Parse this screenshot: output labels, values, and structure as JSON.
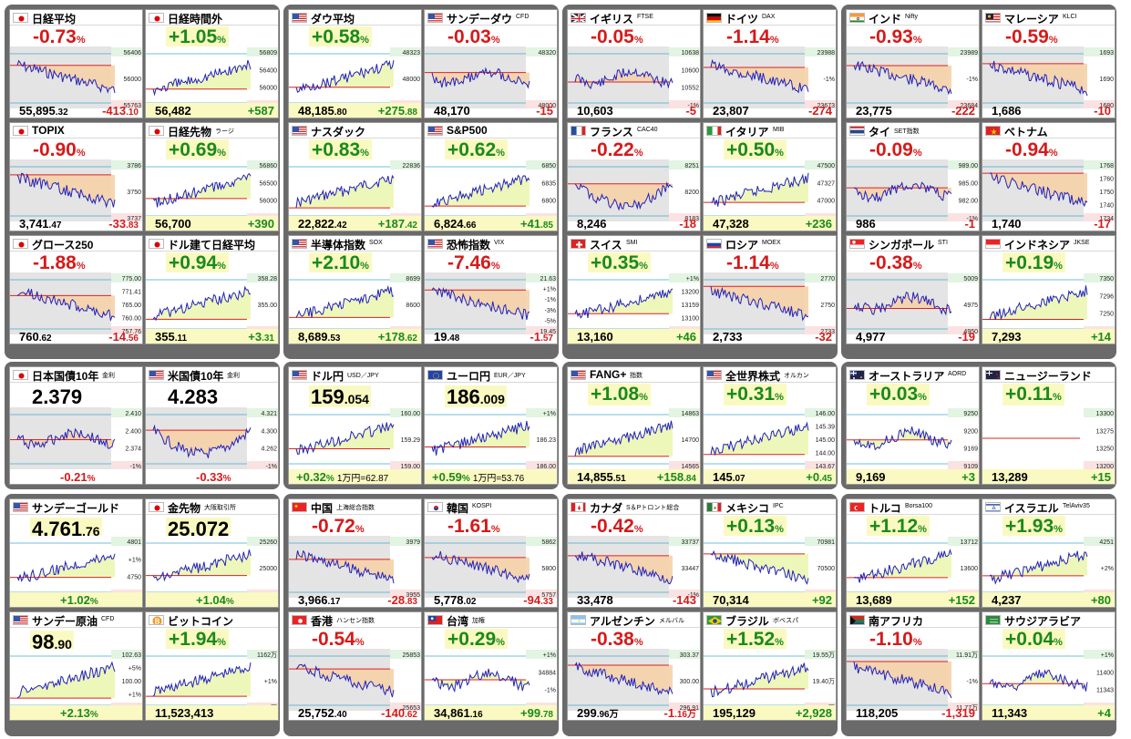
{
  "colors": {
    "up": "#1a8a1a",
    "down": "#d61a1a",
    "line": "#2222bb",
    "fill_up": "#ecf6b2",
    "fill_down": "#f5d2a8",
    "panel_bg": "#6a6a6a",
    "gray_fill": "#cfcfcf"
  },
  "cards": [
    {
      "name": "日経平均",
      "sub": "",
      "flag": "jp",
      "pct": "-0.73",
      "pct_unit": "%",
      "dir": "down",
      "price": "55,895",
      "price_dec": ".32",
      "change": "-413",
      "change_dec": ".10",
      "axis": [
        "56406",
        "56000",
        "55763"
      ],
      "trend": "down"
    },
    {
      "name": "日経時間外",
      "sub": "",
      "flag": "jp",
      "pct": "+1.05",
      "pct_unit": "%",
      "dir": "up",
      "price": "56,482",
      "price_dec": "",
      "change": "+587",
      "change_dec": "",
      "axis": [
        "56809",
        "56400",
        "56000",
        "55600"
      ],
      "trend": "up"
    },
    {
      "name": "ダウ平均",
      "sub": "",
      "flag": "us",
      "pct": "+0.58",
      "pct_unit": "%",
      "dir": "up",
      "price": "48,185",
      "price_dec": ".80",
      "change": "+275",
      "change_dec": ".88",
      "axis": [
        "48323",
        "48000",
        "47705"
      ],
      "trend": "up"
    },
    {
      "name": "サンデーダウ",
      "sub": "CFD",
      "flag": "us",
      "pct": "-0.03",
      "pct_unit": "%",
      "dir": "down",
      "price": "48,170",
      "price_dec": "",
      "change": "-15",
      "change_dec": "",
      "axis": [
        "48320",
        "48000"
      ],
      "trend": "flat"
    },
    {
      "name": "イギリス",
      "sub": "FTSE",
      "flag": "gb",
      "pct": "-0.05",
      "pct_unit": "%",
      "dir": "down",
      "price": "10,603",
      "price_dec": "",
      "change": "-5",
      "change_dec": "",
      "axis": [
        "10638",
        "10600",
        "10552",
        "-1%"
      ],
      "trend": "flat"
    },
    {
      "name": "ドイツ",
      "sub": "DAX",
      "flag": "de",
      "pct": "-1.14",
      "pct_unit": "%",
      "dir": "down",
      "price": "23,807",
      "price_dec": "",
      "change": "-274",
      "change_dec": "",
      "axis": [
        "23988",
        "-1%",
        "23673"
      ],
      "trend": "down"
    },
    {
      "name": "インド",
      "sub": "Nifty",
      "flag": "in",
      "pct": "-0.93",
      "pct_unit": "%",
      "dir": "down",
      "price": "23,775",
      "price_dec": "",
      "change": "-222",
      "change_dec": "",
      "axis": [
        "23989",
        "-1%",
        "23684"
      ],
      "trend": "down"
    },
    {
      "name": "マレーシア",
      "sub": "KLCI",
      "flag": "my",
      "pct": "-0.59",
      "pct_unit": "%",
      "dir": "down",
      "price": "1,686",
      "price_dec": "",
      "change": "-10",
      "change_dec": "",
      "axis": [
        "1693",
        "1690",
        "1680"
      ],
      "trend": "down"
    },
    {
      "name": "TOPIX",
      "sub": "",
      "flag": "jp",
      "pct": "-0.90",
      "pct_unit": "%",
      "dir": "down",
      "price": "3,741",
      "price_dec": ".47",
      "change": "-33",
      "change_dec": ".83",
      "axis": [
        "3786",
        "3750",
        "3737"
      ],
      "trend": "down"
    },
    {
      "name": "日経先物",
      "sub": "ラージ",
      "flag": "jp",
      "pct": "+0.69",
      "pct_unit": "%",
      "dir": "up",
      "price": "56,700",
      "price_dec": "",
      "change": "+390",
      "change_dec": "",
      "axis": [
        "56860",
        "56500",
        "56000",
        "55760"
      ],
      "trend": "up"
    },
    {
      "name": "ナスダック",
      "sub": "",
      "flag": "us",
      "pct": "+0.83",
      "pct_unit": "%",
      "dir": "up",
      "price": "22,822",
      "price_dec": ".42",
      "change": "+187",
      "change_dec": ".42",
      "axis": [
        "22836",
        "22529"
      ],
      "trend": "up"
    },
    {
      "name": "S&P500",
      "sub": "",
      "flag": "us",
      "pct": "+0.62",
      "pct_unit": "%",
      "dir": "up",
      "price": "6,824",
      "price_dec": ".66",
      "change": "+41",
      "change_dec": ".85",
      "axis": [
        "6850",
        "6835",
        "6800",
        "6761"
      ],
      "trend": "up"
    },
    {
      "name": "フランス",
      "sub": "CAC40",
      "flag": "fr",
      "pct": "-0.22",
      "pct_unit": "%",
      "dir": "down",
      "price": "8,246",
      "price_dec": "",
      "change": "-18",
      "change_dec": "",
      "axis": [
        "8251",
        "8200",
        "8183"
      ],
      "trend": "vdip"
    },
    {
      "name": "イタリア",
      "sub": "MIB",
      "flag": "it",
      "pct": "+0.50",
      "pct_unit": "%",
      "dir": "up",
      "price": "47,328",
      "price_dec": "",
      "change": "+236",
      "change_dec": "",
      "axis": [
        "47500",
        "47327",
        "47000",
        "46901"
      ],
      "trend": "up"
    },
    {
      "name": "タイ",
      "sub": "SET指数",
      "flag": "th",
      "pct": "-0.09",
      "pct_unit": "%",
      "dir": "down",
      "price": "986",
      "price_dec": "",
      "change": "-1",
      "change_dec": "",
      "axis": [
        "989.00",
        "985.00",
        "982.00",
        "-1%"
      ],
      "trend": "flat"
    },
    {
      "name": "ベトナム",
      "sub": "",
      "flag": "vn",
      "pct": "-0.94",
      "pct_unit": "%",
      "dir": "down",
      "price": "1,740",
      "price_dec": "",
      "change": "-17",
      "change_dec": "",
      "axis": [
        "1768",
        "1760",
        "1750",
        "1740",
        "1734"
      ],
      "trend": "down"
    },
    {
      "name": "グロース250",
      "sub": "",
      "flag": "jp",
      "pct": "-1.88",
      "pct_unit": "%",
      "dir": "down",
      "price": "760",
      "price_dec": ".62",
      "change": "-14",
      "change_dec": ".56",
      "axis": [
        "775.00",
        "771.41",
        "765.00",
        "760.00",
        "757.76"
      ],
      "trend": "down"
    },
    {
      "name": "ドル建て日経平均",
      "sub": "",
      "flag": "jp",
      "pct": "+0.94",
      "pct_unit": "%",
      "dir": "up",
      "price": "355",
      "price_dec": ".11",
      "change": "+3",
      "change_dec": ".31",
      "axis": [
        "358.28",
        "355.00",
        "350.00"
      ],
      "trend": "up"
    },
    {
      "name": "半導体指数",
      "sub": "SOX",
      "flag": "us",
      "pct": "+2.10",
      "pct_unit": "%",
      "dir": "up",
      "price": "8,689",
      "price_dec": ".53",
      "change": "+178",
      "change_dec": ".62",
      "axis": [
        "8699",
        "8600",
        "8545"
      ],
      "trend": "up"
    },
    {
      "name": "恐怖指数",
      "sub": "VIX",
      "flag": "us",
      "pct": "-7.46",
      "pct_unit": "%",
      "dir": "down",
      "price": "19",
      "price_dec": ".48",
      "change": "-1",
      "change_dec": ".57",
      "axis": [
        "21.63",
        "+1%",
        "-1%",
        "-3%",
        "-5%",
        "19.45"
      ],
      "trend": "down"
    },
    {
      "name": "スイス",
      "sub": "SMI",
      "flag": "ch",
      "pct": "+0.35",
      "pct_unit": "%",
      "dir": "up",
      "price": "13,160",
      "price_dec": "",
      "change": "+46",
      "change_dec": "",
      "axis": [
        "+1%",
        "13200",
        "13159",
        "13100",
        "13042"
      ],
      "trend": "up"
    },
    {
      "name": "ロシア",
      "sub": "MOEX",
      "flag": "ru",
      "pct": "-1.14",
      "pct_unit": "%",
      "dir": "down",
      "price": "2,733",
      "price_dec": "",
      "change": "-32",
      "change_dec": "",
      "axis": [
        "2770",
        "2750",
        "2733"
      ],
      "trend": "down"
    },
    {
      "name": "シンガポール",
      "sub": "STI",
      "flag": "sg",
      "pct": "-0.38",
      "pct_unit": "%",
      "dir": "down",
      "price": "4,977",
      "price_dec": "",
      "change": "-19",
      "change_dec": "",
      "axis": [
        "5009",
        "4975",
        "4950"
      ],
      "trend": "flat"
    },
    {
      "name": "インドネシア",
      "sub": "JKSE",
      "flag": "id",
      "pct": "+0.19",
      "pct_unit": "%",
      "dir": "up",
      "price": "7,293",
      "price_dec": "",
      "change": "+14",
      "change_dec": "",
      "axis": [
        "7350",
        "7296",
        "7250",
        "7194"
      ],
      "trend": "up"
    },
    {
      "name": "日本国債10年",
      "sub": "金利",
      "flag": "jp",
      "big": "2.379",
      "big_dec": "",
      "dir": "down",
      "foot_pct": "-0.21",
      "foot_note": "",
      "axis": [
        "2.410",
        "2.400",
        "2.374",
        "-1%"
      ],
      "trend": "flat"
    },
    {
      "name": "米国債10年",
      "sub": "金利",
      "flag": "us",
      "big": "4.283",
      "big_dec": "",
      "dir": "down",
      "foot_pct": "-0.33",
      "foot_note": "",
      "axis": [
        "4.321",
        "4.300",
        "4.262",
        "-1%"
      ],
      "trend": "vdip"
    },
    {
      "name": "ドル円",
      "sub": "USD／JPY",
      "flag": "us",
      "big": "159",
      "big_dec": ".054",
      "dir": "up",
      "foot_pct": "+0.32",
      "foot_note": "1万円=62.87",
      "axis": [
        "160.00",
        "159.29",
        "159.00"
      ],
      "trend": "up"
    },
    {
      "name": "ユーロ円",
      "sub": "EUR／JPY",
      "flag": "eu",
      "big": "186",
      "big_dec": ".009",
      "dir": "up",
      "foot_pct": "+0.59",
      "foot_note": "1万円=53.76",
      "axis": [
        "+1%",
        "186.23",
        "186.00"
      ],
      "trend": "up"
    },
    {
      "name": "FANG+",
      "sub": "指数",
      "flag": "us",
      "pct": "+1.08",
      "pct_unit": "%",
      "dir": "up",
      "price": "14,855",
      "price_dec": ".51",
      "change": "+158",
      "change_dec": ".84",
      "axis": [
        "14863",
        "14700",
        "14565"
      ],
      "trend": "up"
    },
    {
      "name": "全世界株式",
      "sub": "オルカン",
      "flag": "us",
      "pct": "+0.31",
      "pct_unit": "%",
      "dir": "up",
      "price": "145",
      "price_dec": ".07",
      "change": "+0",
      "change_dec": ".45",
      "axis": [
        "146.00",
        "145.39",
        "145.00",
        "144.00",
        "143.67"
      ],
      "trend": "up"
    },
    {
      "name": "オーストラリア",
      "sub": "AORD",
      "flag": "au",
      "pct": "+0.03",
      "pct_unit": "%",
      "dir": "up",
      "price": "9,169",
      "price_dec": "",
      "change": "+3",
      "change_dec": "",
      "axis": [
        "9250",
        "9200",
        "9169",
        "9109"
      ],
      "trend": "flat"
    },
    {
      "name": "ニュージーランド",
      "sub": "",
      "flag": "nz",
      "pct": "+0.11",
      "pct_unit": "%",
      "dir": "up",
      "price": "13,289",
      "price_dec": "",
      "change": "+15",
      "change_dec": "",
      "axis": [
        "13300",
        "13275",
        "13250",
        "13200"
      ],
      "trend": "none"
    },
    {
      "name": "サンデーゴールド",
      "sub": "",
      "flag": "us",
      "big": "4,761",
      "big_dec": ".76",
      "dir": "up",
      "foot_pct": "+1.02",
      "foot_note": "",
      "axis": [
        "4801",
        "+1%",
        "4750",
        "4700"
      ],
      "trend": "up"
    },
    {
      "name": "金先物",
      "sub": "大阪取引所",
      "flag": "jp",
      "big": "25,072",
      "big_dec": "",
      "dir": "up",
      "foot_pct": "+1.04",
      "foot_note": "",
      "axis": [
        "25260",
        "25000",
        "24745"
      ],
      "trend": "up"
    },
    {
      "name": "中国",
      "sub": "上海総合指数",
      "flag": "cn",
      "pct": "-0.72",
      "pct_unit": "%",
      "dir": "down",
      "price": "3,966",
      "price_dec": ".17",
      "change": "-28",
      "change_dec": ".83",
      "axis": [
        "3979",
        "3955"
      ],
      "trend": "down"
    },
    {
      "name": "韓国",
      "sub": "KOSPI",
      "flag": "kr",
      "pct": "-1.61",
      "pct_unit": "%",
      "dir": "down",
      "price": "5,778",
      "price_dec": ".02",
      "change": "-94",
      "change_dec": ".33",
      "axis": [
        "5862",
        "5800",
        "5757"
      ],
      "trend": "down"
    },
    {
      "name": "カナダ",
      "sub": "S＆Pトロント総合",
      "flag": "ca",
      "pct": "-0.42",
      "pct_unit": "%",
      "dir": "down",
      "price": "33,478",
      "price_dec": "",
      "change": "-143",
      "change_dec": "",
      "axis": [
        "33737",
        "33447",
        "-1%"
      ],
      "trend": "down"
    },
    {
      "name": "メキシコ",
      "sub": "IPC",
      "flag": "mx",
      "pct": "+0.13",
      "pct_unit": "%",
      "dir": "up",
      "price": "70,314",
      "price_dec": "",
      "change": "+92",
      "change_dec": "",
      "axis": [
        "70981",
        "70500",
        "70066"
      ],
      "trend": "down"
    },
    {
      "name": "トルコ",
      "sub": "Borsa100",
      "flag": "tr",
      "pct": "+1.12",
      "pct_unit": "%",
      "dir": "up",
      "price": "13,689",
      "price_dec": "",
      "change": "+152",
      "change_dec": "",
      "axis": [
        "13712",
        "13600",
        "13529"
      ],
      "trend": "up"
    },
    {
      "name": "イスラエル",
      "sub": "TelAviv35",
      "flag": "il",
      "pct": "+1.93",
      "pct_unit": "%",
      "dir": "up",
      "price": "4,237",
      "price_dec": "",
      "change": "+80",
      "change_dec": "",
      "axis": [
        "4251",
        "+2%",
        "4208"
      ],
      "trend": "up"
    },
    {
      "name": "サンデー原油",
      "sub": "CFD",
      "flag": "us",
      "big": "98",
      "big_dec": ".90",
      "dir": "up",
      "foot_pct": "+2.13",
      "foot_note": "",
      "axis": [
        "102.63",
        "+5%",
        "100.00",
        "+1%",
        "97.37"
      ],
      "trend": "up"
    },
    {
      "name": "ビットコイン",
      "sub": "",
      "flag": "btc",
      "pct": "+1.94",
      "pct_unit": "%",
      "dir": "up",
      "price": "11,523,413",
      "price_dec": "",
      "change": "",
      "change_dec": "",
      "axis": [
        "1162万",
        "+1%",
        "1140万"
      ],
      "trend": "up"
    },
    {
      "name": "香港",
      "sub": "ハンセン指数",
      "flag": "hk",
      "pct": "-0.54",
      "pct_unit": "%",
      "dir": "down",
      "price": "25,752",
      "price_dec": ".40",
      "change": "-140",
      "change_dec": ".62",
      "axis": [
        "25853",
        "25653"
      ],
      "trend": "down"
    },
    {
      "name": "台湾",
      "sub": "加権",
      "flag": "tw",
      "pct": "+0.29",
      "pct_unit": "%",
      "dir": "up",
      "price": "34,861",
      "price_dec": ".16",
      "change": "+99",
      "change_dec": ".78",
      "axis": [
        "+1%",
        "34884",
        "-1%",
        "34617"
      ],
      "trend": "flat"
    },
    {
      "name": "アルゼンチン",
      "sub": "メルバル",
      "flag": "ar",
      "pct": "-0.38",
      "pct_unit": "%",
      "dir": "down",
      "price": "299",
      "price_dec": ".96万",
      "change": "-1",
      "change_dec": ".16万",
      "axis": [
        "303.37",
        "300.00",
        "296.91"
      ],
      "trend": "down"
    },
    {
      "name": "ブラジル",
      "sub": "ボベスパ",
      "flag": "br",
      "pct": "+1.52",
      "pct_unit": "%",
      "dir": "up",
      "price": "195,129",
      "price_dec": "",
      "change": "+2,928",
      "change_dec": "",
      "axis": [
        "19.55万",
        "19.40万",
        "19.22万"
      ],
      "trend": "up"
    },
    {
      "name": "南アフリカ",
      "sub": "",
      "flag": "za",
      "pct": "-1.10",
      "pct_unit": "%",
      "dir": "down",
      "price": "118,205",
      "price_dec": "",
      "change": "-1,319",
      "change_dec": "",
      "axis": [
        "11.91万",
        "-1%",
        "11.77万"
      ],
      "trend": "down"
    },
    {
      "name": "サウジアラビア",
      "sub": "",
      "flag": "sa",
      "pct": "+0.04",
      "pct_unit": "%",
      "dir": "up",
      "price": "11,343",
      "price_dec": "",
      "change": "+4",
      "change_dec": "",
      "axis": [
        "+1%",
        "11400",
        "11343",
        "11286"
      ],
      "trend": "flat"
    }
  ]
}
